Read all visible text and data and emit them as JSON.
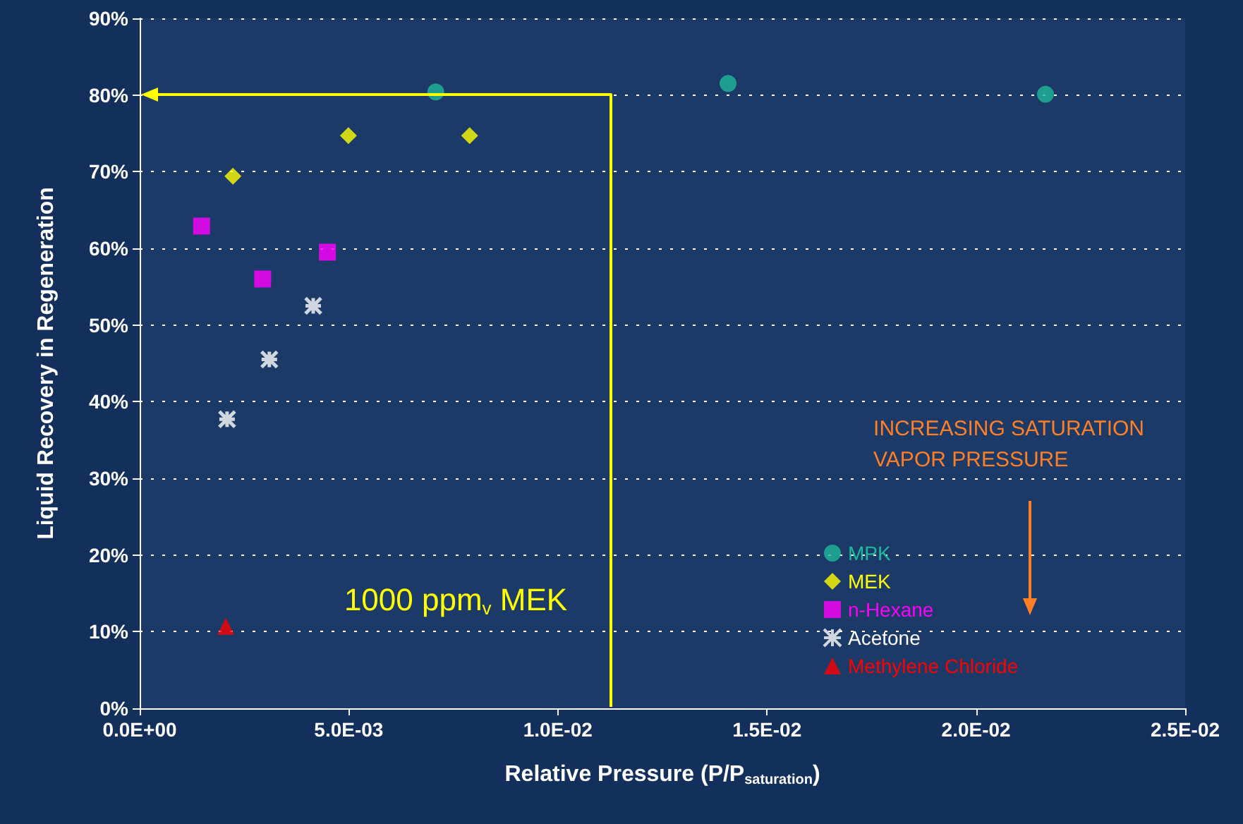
{
  "chart_data": {
    "type": "scatter",
    "xlabel": "Relative Pressure (P/P$_{saturation}$)",
    "ylabel": "Liquid Recovery in Regeneration",
    "xlim": [
      0,
      0.025
    ],
    "xticks": [
      {
        "value": 0,
        "label": "0.0E+00"
      },
      {
        "value": 0.005,
        "label": "5.0E-03"
      },
      {
        "value": 0.01,
        "label": "1.0E-02"
      },
      {
        "value": 0.015,
        "label": "1.5E-02"
      },
      {
        "value": 0.02,
        "label": "2.0E-02"
      },
      {
        "value": 0.025,
        "label": "2.5E-02"
      }
    ],
    "ylim": [
      0,
      90
    ],
    "yticks": [
      {
        "value": 0,
        "label": "0%"
      },
      {
        "value": 10,
        "label": "10%"
      },
      {
        "value": 20,
        "label": "20%"
      },
      {
        "value": 30,
        "label": "30%"
      },
      {
        "value": 40,
        "label": "40%"
      },
      {
        "value": 50,
        "label": "50%"
      },
      {
        "value": 60,
        "label": "60%"
      },
      {
        "value": 70,
        "label": "70%"
      },
      {
        "value": 80,
        "label": "80%"
      },
      {
        "value": 90,
        "label": "90%"
      }
    ],
    "grid": "y",
    "legend": "bottom right",
    "series": [
      {
        "name": "MPK",
        "color": "#1fb89a",
        "marker": "circle",
        "x": [
          0.00708,
          0.01407,
          0.02166
        ],
        "values": [
          80.4,
          81.5,
          80.1
        ]
      },
      {
        "name": "MEK",
        "color": "#ffff00",
        "marker": "diamond",
        "x": [
          0.00223,
          0.00499,
          0.00789
        ],
        "values": [
          69.4,
          74.7,
          74.7
        ]
      },
      {
        "name": "n-Hexane",
        "color": "#ff00ff",
        "marker": "square",
        "x": [
          0.00148,
          0.00294,
          0.00449
        ],
        "values": [
          62.9,
          56.0,
          59.5
        ]
      },
      {
        "name": "Acetone",
        "color": "#ffffff",
        "marker": "cross",
        "x": [
          0.00209,
          0.0031,
          0.00415
        ],
        "values": [
          37.7,
          45.5,
          52.5
        ]
      },
      {
        "name": "Methylene Chloride",
        "color": "#ff0000",
        "marker": "triangle",
        "x": [
          0.00206
        ],
        "values": [
          10.7
        ]
      }
    ],
    "annotations": [
      "1000 ppm$_{v}$ MEK",
      "INCREASING SATURATION VAPOR PRESSURE"
    ]
  }
}
